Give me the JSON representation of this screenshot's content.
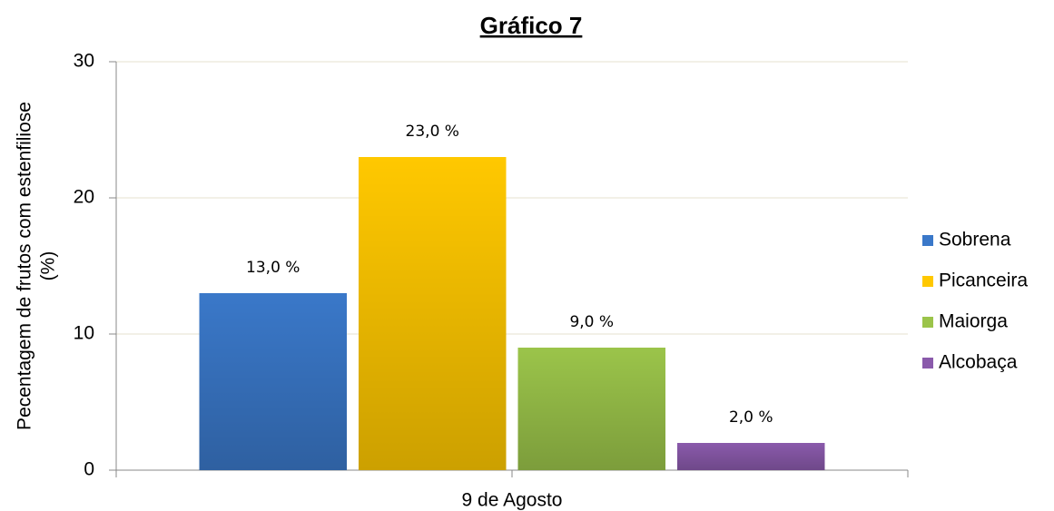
{
  "chart_data": {
    "type": "bar",
    "title": "Gráfico 7",
    "ylabel": [
      "Pecentagem de frutos com estenfiliose",
      "(%)"
    ],
    "categories": [
      "9 de Agosto"
    ],
    "series": [
      {
        "name": "Sobrena",
        "color": "#3a78c9",
        "values": [
          13
        ],
        "value_labels": [
          "13,0 %"
        ]
      },
      {
        "name": "Picanceira",
        "color": "#ffc800",
        "values": [
          23
        ],
        "value_labels": [
          "23,0 %"
        ]
      },
      {
        "name": "Maiorga",
        "color": "#9bc44a",
        "values": [
          9
        ],
        "value_labels": [
          "9,0 %"
        ]
      },
      {
        "name": "Alcobaça",
        "color": "#8a5aab",
        "values": [
          2
        ],
        "value_labels": [
          "2,0 %"
        ]
      }
    ],
    "ylim": [
      0,
      30
    ],
    "yticks": [
      0,
      10,
      20,
      30
    ],
    "grid": true,
    "legend": "right"
  }
}
